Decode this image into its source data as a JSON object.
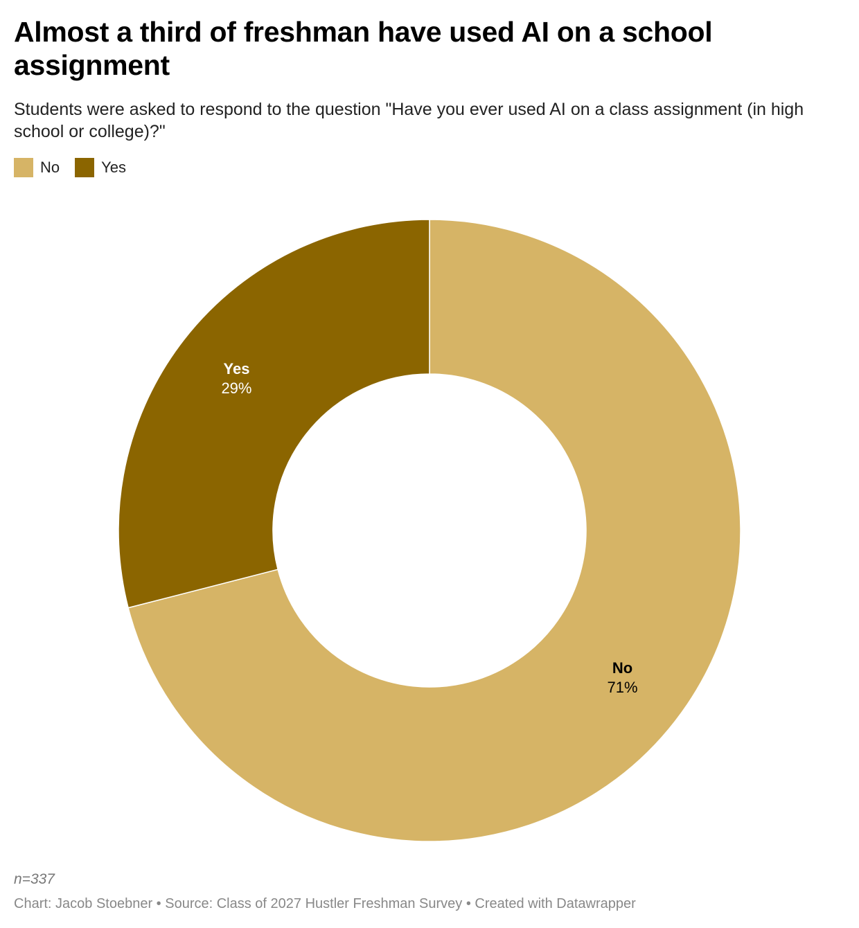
{
  "title": "Almost a third of freshman have used AI on a school assignment",
  "subtitle": "Students were asked to respond to the question \"Have you ever used AI on a class assignment (in high school or college)?\"",
  "legend": [
    {
      "label": "No",
      "color": "#d6b466"
    },
    {
      "label": "Yes",
      "color": "#8b6500"
    }
  ],
  "note": "n=337",
  "footer": "Chart: Jacob Stoebner • Source: Class of 2027 Hustler Freshman Survey • Created with Datawrapper",
  "chart_data": {
    "type": "pie",
    "style": "donut",
    "title": "Almost a third of freshman have used AI on a school assignment",
    "categories": [
      "No",
      "Yes"
    ],
    "values": [
      71,
      29
    ],
    "unit": "%",
    "colors": [
      "#d6b466",
      "#8b6500"
    ],
    "label_colors": [
      "#000000",
      "#ffffff"
    ],
    "data_labels": [
      "71%",
      "29%"
    ],
    "legend_position": "top-left"
  }
}
